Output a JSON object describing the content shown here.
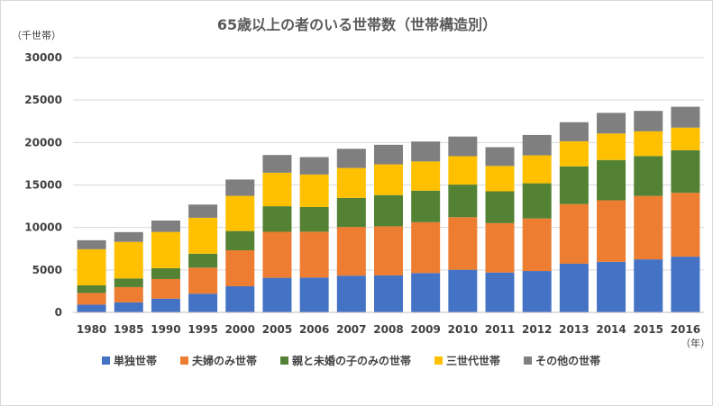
{
  "chart_data": {
    "type": "bar",
    "stacked": true,
    "title": "65歳以上の者のいる世帯数（世帯構造別）",
    "y_unit_label": "（千世帯）",
    "x_unit_label": "（年）",
    "categories": [
      "1980",
      "1985",
      "1990",
      "1995",
      "2000",
      "2005",
      "2006",
      "2007",
      "2008",
      "2009",
      "2010",
      "2011",
      "2012",
      "2013",
      "2014",
      "2015",
      "2016"
    ],
    "ylim": [
      0,
      30000
    ],
    "yticks": [
      0,
      5000,
      10000,
      15000,
      20000,
      25000,
      30000
    ],
    "grid": true,
    "legend_position": "bottom",
    "series": [
      {
        "name": "単独世帯",
        "color": "#4472c4",
        "values": [
          910,
          1180,
          1613,
          2199,
          3079,
          4069,
          4102,
          4326,
          4352,
          4631,
          5018,
          4697,
          4871,
          5730,
          5959,
          6243,
          6559
        ]
      },
      {
        "name": "夫婦のみ世帯",
        "color": "#ed7d31",
        "values": [
          1379,
          1795,
          2314,
          3075,
          4234,
          5420,
          5397,
          5732,
          5781,
          5987,
          6190,
          5817,
          6190,
          7025,
          7242,
          7469,
          7526
        ]
      },
      {
        "name": "親と未婚の子のみの世帯",
        "color": "#548235",
        "values": [
          891,
          1012,
          1275,
          1636,
          2268,
          3010,
          2908,
          3418,
          3678,
          3718,
          3837,
          3743,
          4140,
          4442,
          4743,
          4704,
          5007
        ]
      },
      {
        "name": "三世代世帯",
        "color": "#ffc000",
        "values": [
          4254,
          4313,
          4270,
          4232,
          4141,
          3947,
          3826,
          3528,
          3620,
          3433,
          3348,
          2987,
          3289,
          2953,
          3117,
          2906,
          2668
        ]
      },
      {
        "name": "その他の世帯",
        "color": "#7f7f7f",
        "values": [
          1062,
          1150,
          1345,
          1553,
          1924,
          2088,
          2052,
          2260,
          2304,
          2353,
          2313,
          2208,
          2401,
          2244,
          2434,
          2402,
          2451
        ]
      }
    ]
  }
}
